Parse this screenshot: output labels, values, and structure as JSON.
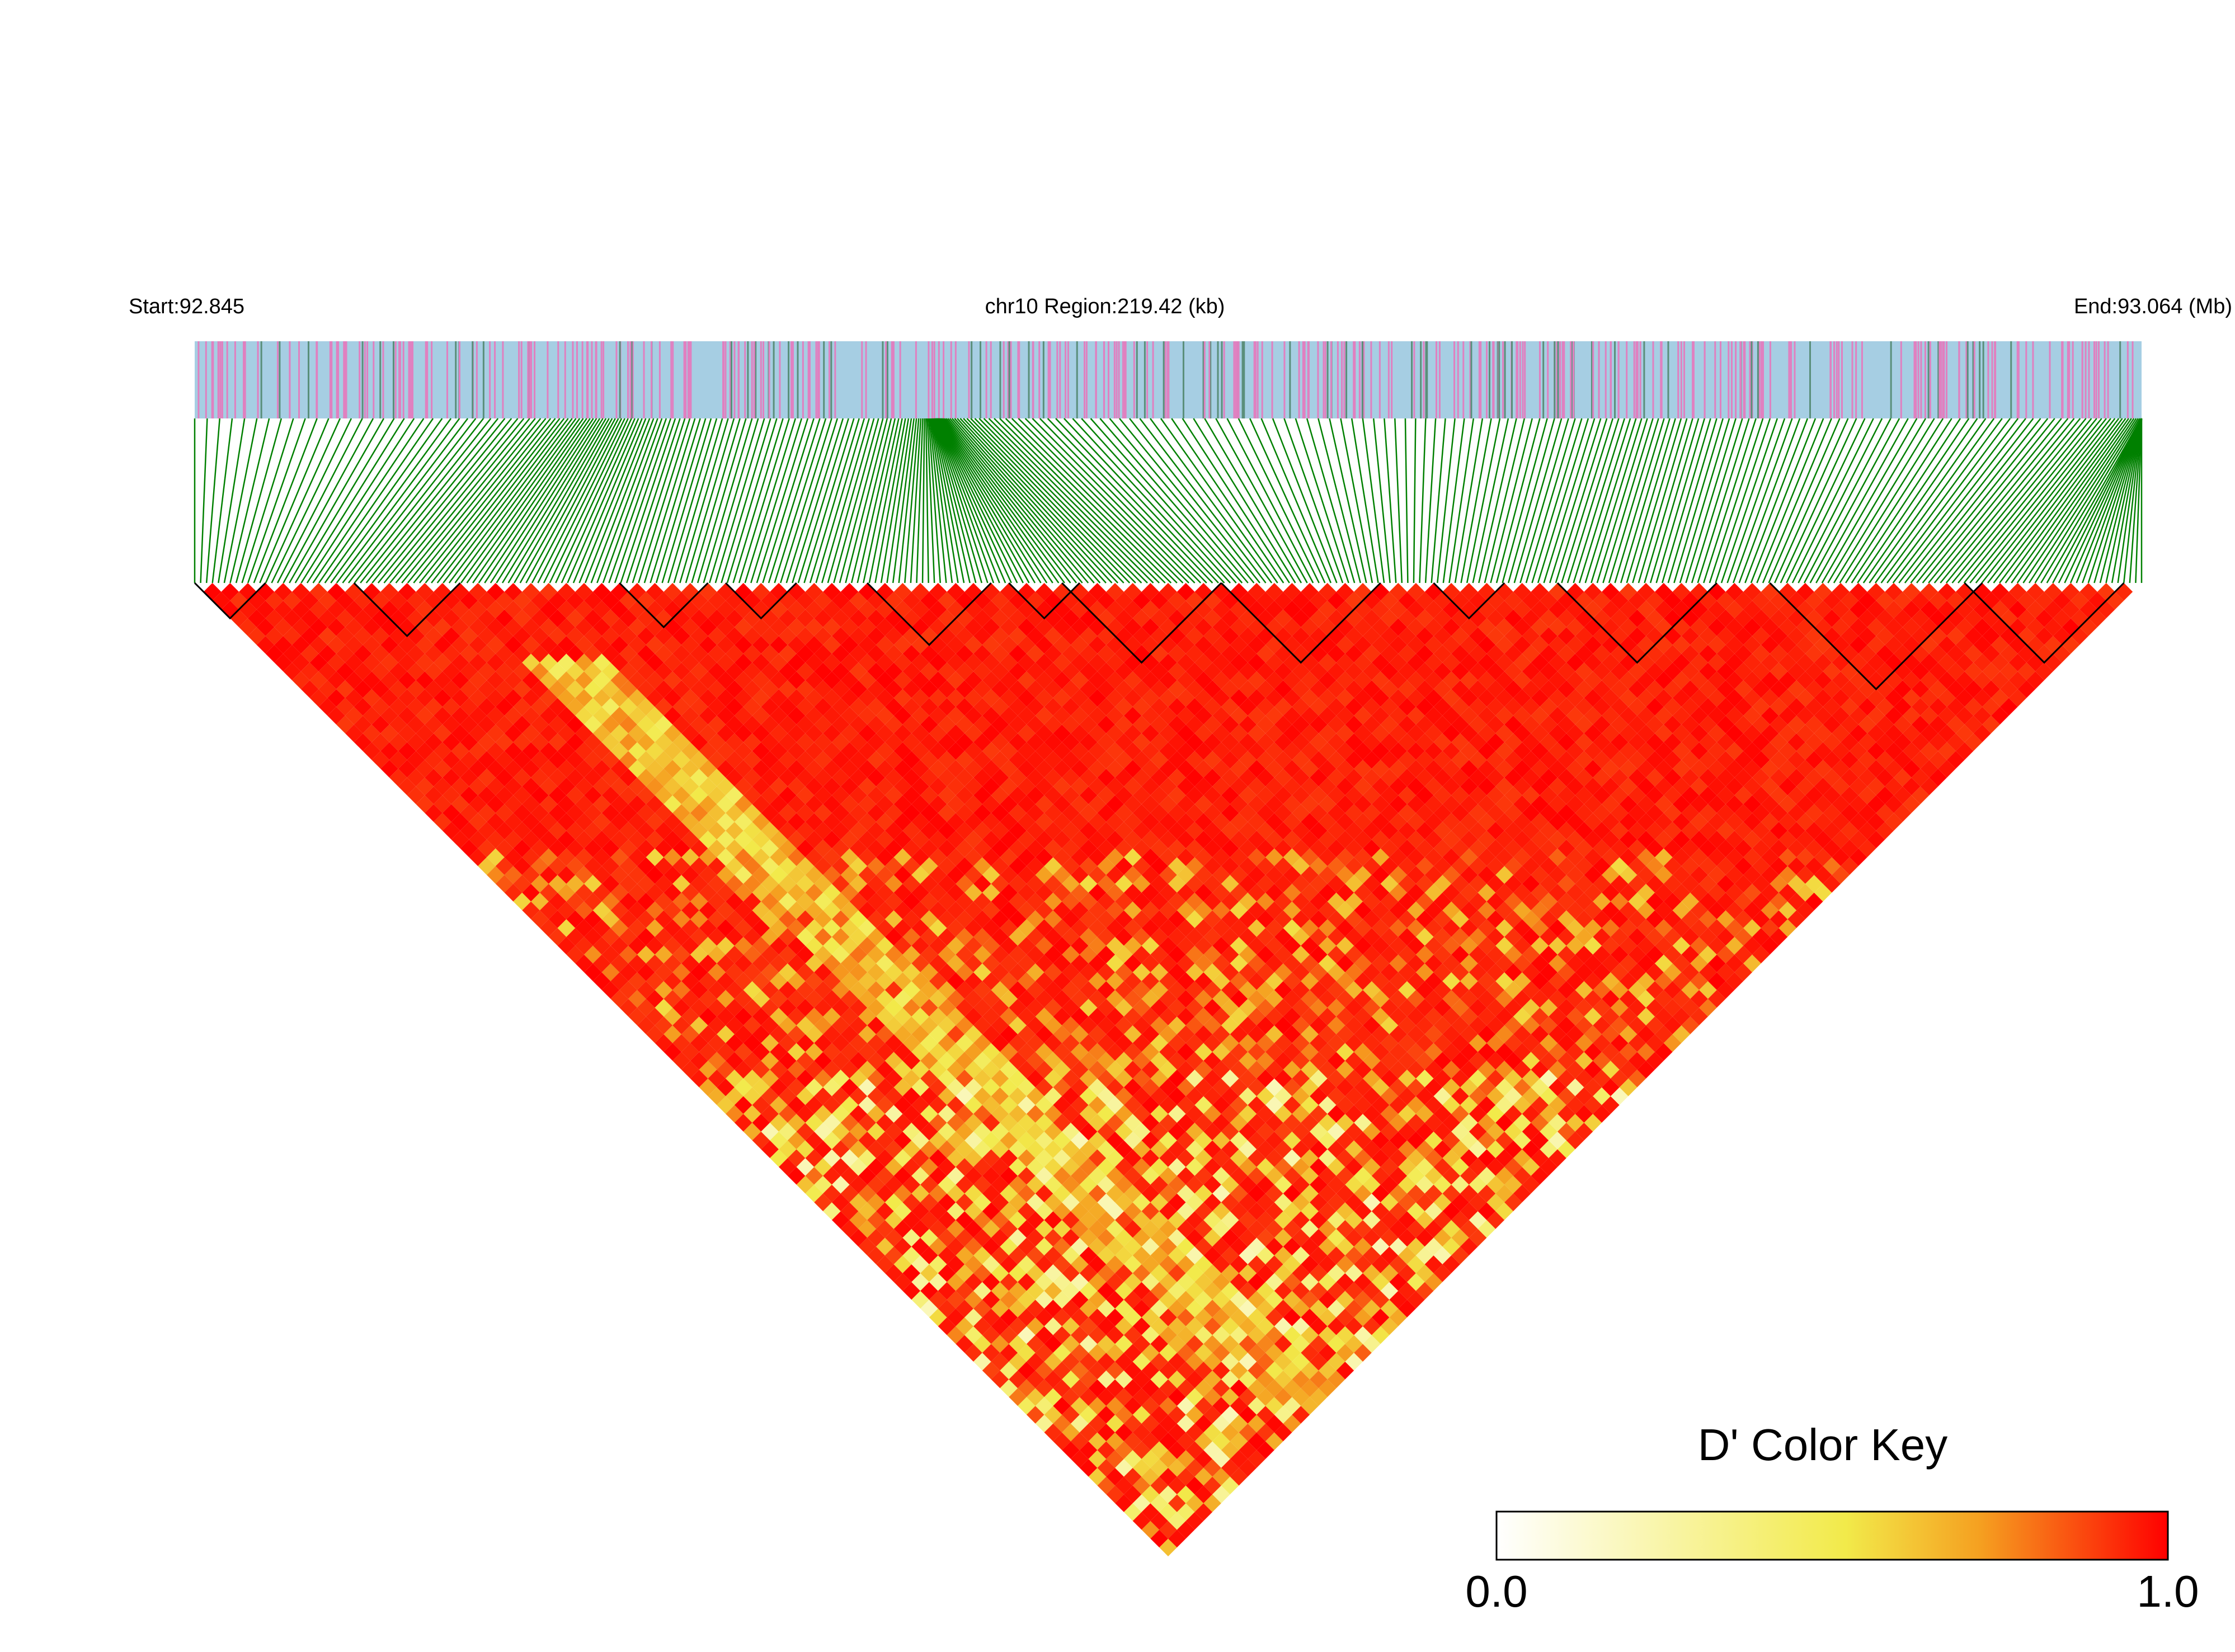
{
  "header": {
    "start_label": "Start:92.845",
    "region_label": "chr10 Region:219.42 (kb)",
    "end_label": "End:93.064 (Mb)"
  },
  "legend": {
    "title": "D' Color Key",
    "min_label": "0.0",
    "max_label": "1.0",
    "stops": [
      "#ffffff",
      "#f2ea4a",
      "#f5a020",
      "#ff0000"
    ]
  },
  "chart_data": {
    "type": "heatmap",
    "chromosome": "chr10",
    "region_start_mb": 92.845,
    "region_end_mb": 93.064,
    "region_size_kb": 219.42,
    "value_range": [
      0.0,
      1.0
    ],
    "colorscale": "white-yellow-red",
    "track_colors": {
      "background": "#a6cee3",
      "variant_mark": "#e080c0",
      "connector": "#008000"
    }
  }
}
